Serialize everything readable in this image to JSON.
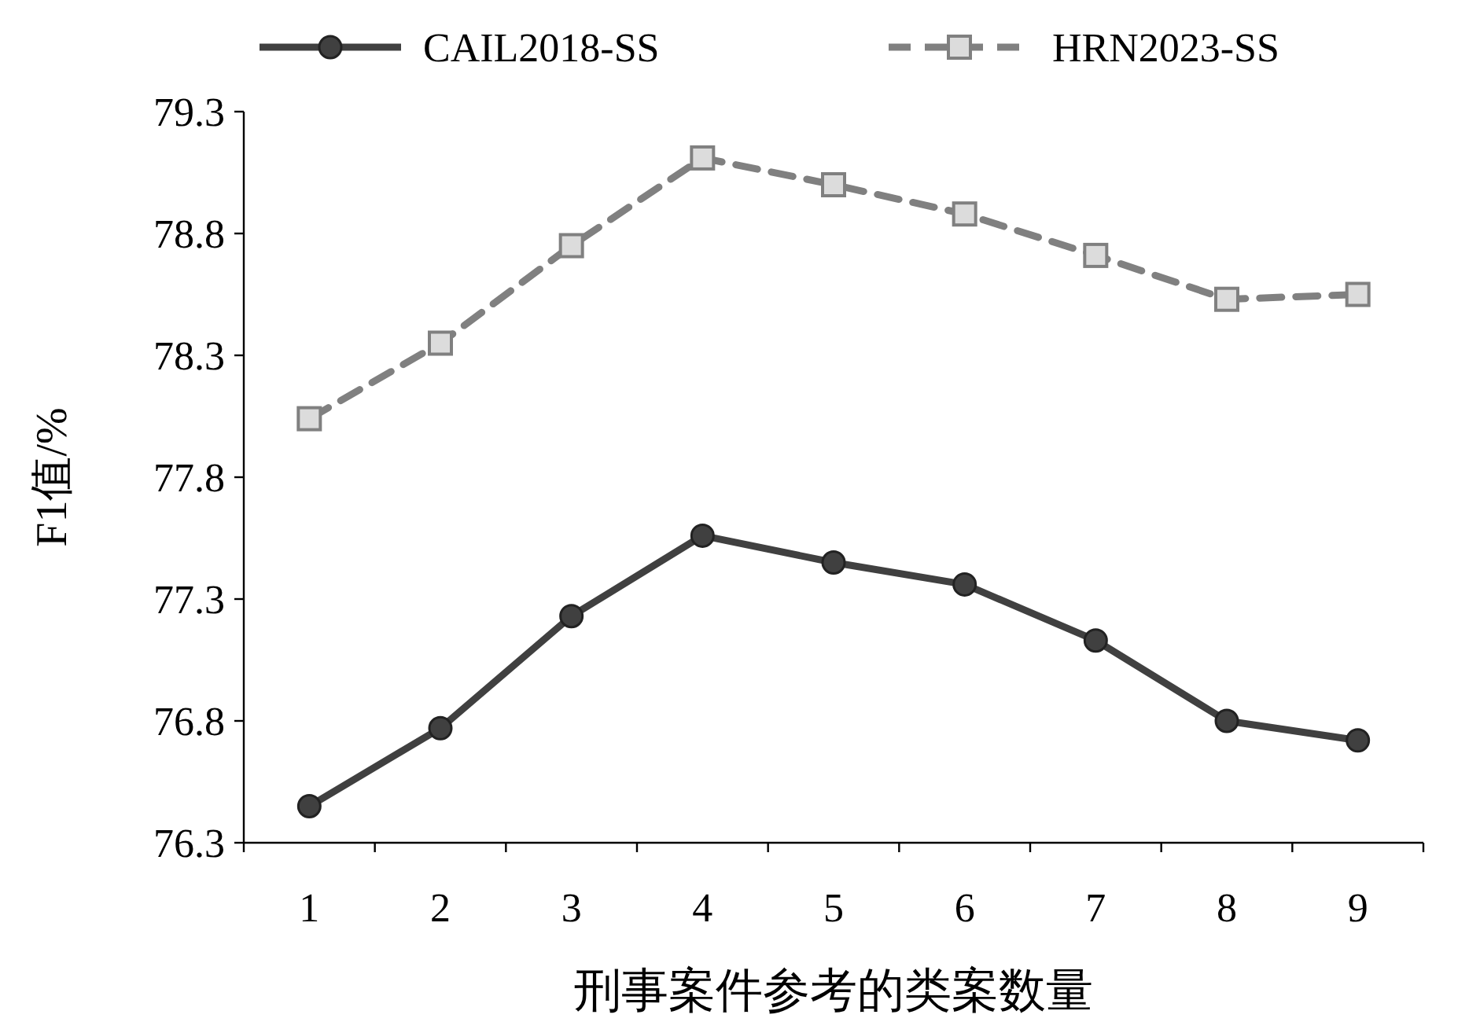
{
  "chart_data": {
    "type": "line",
    "xlabel": "刑事案件参考的类案数量",
    "ylabel": "F1值/%",
    "categories": [
      "1",
      "2",
      "3",
      "4",
      "5",
      "6",
      "7",
      "8",
      "9"
    ],
    "series": [
      {
        "name": "CAIL2018-SS",
        "color": "#404040",
        "marker": "circle",
        "line_style": "solid",
        "values": [
          76.45,
          76.77,
          77.23,
          77.56,
          77.45,
          77.36,
          77.13,
          76.8,
          76.72
        ]
      },
      {
        "name": "HRN2023-SS",
        "color": "#808080",
        "marker": "square",
        "line_style": "dashed",
        "values": [
          78.04,
          78.35,
          78.75,
          79.11,
          79.0,
          78.88,
          78.71,
          78.53,
          78.55
        ]
      }
    ],
    "ylim": [
      76.3,
      79.3
    ],
    "yticks": [
      76.3,
      76.8,
      77.3,
      77.8,
      78.3,
      78.8,
      79.3
    ],
    "grid": false,
    "legend": "top"
  }
}
